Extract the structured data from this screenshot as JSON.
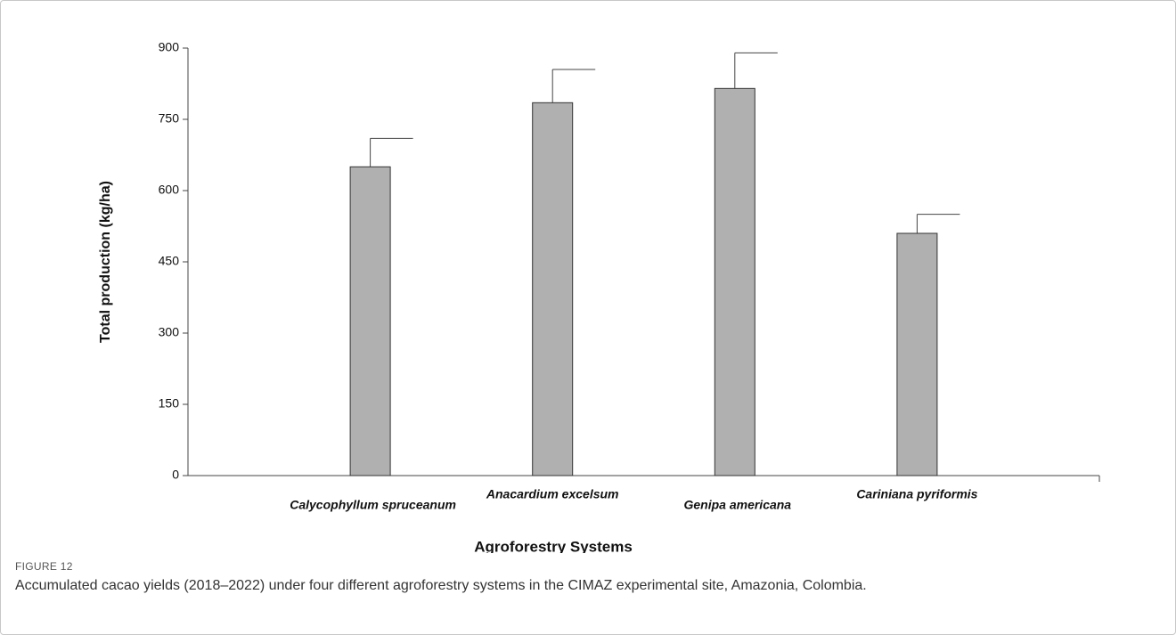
{
  "chart_data": {
    "type": "bar",
    "x_label": "Agroforestry Systems",
    "y_label": "Total production (kg/ha)",
    "categories": [
      "Calycophyllum spruceanum",
      "Anacardium excelsum",
      "Genipa americana",
      "Cariniana pyriformis"
    ],
    "values": [
      650,
      785,
      815,
      510
    ],
    "errors": [
      60,
      70,
      75,
      40
    ],
    "color": "#b0b0b0",
    "ylim": [
      0,
      900
    ],
    "yticks": [
      0,
      150,
      300,
      450,
      600,
      750,
      900
    ],
    "grid": false
  },
  "figure_label": "FIGURE 12",
  "caption": "Accumulated cacao yields (2018–2022) under four different agroforestry systems in the CIMAZ experimental site, Amazonia, Colombia."
}
